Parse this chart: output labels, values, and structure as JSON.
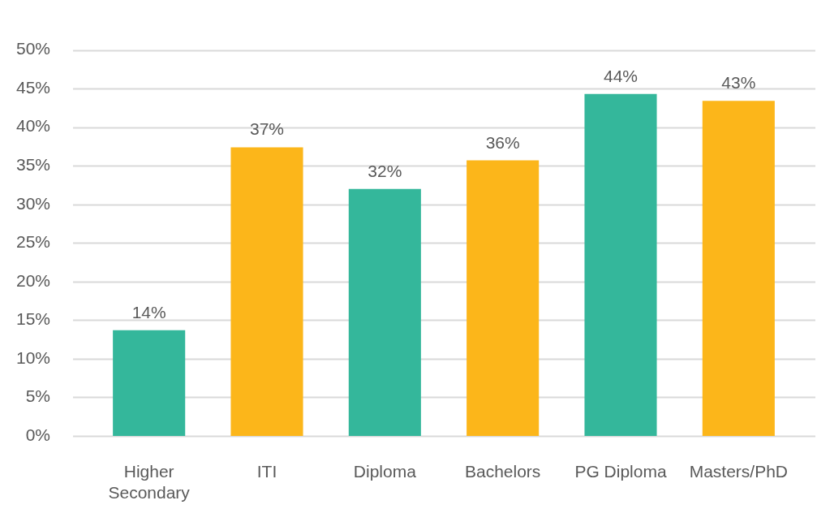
{
  "chart_data": {
    "type": "bar",
    "categories": [
      "Higher Secondary",
      "ITI",
      "Diploma",
      "Bachelors",
      "PG Diploma",
      "Masters/PhD"
    ],
    "values": [
      13.7,
      37.4,
      32.0,
      35.7,
      44.3,
      43.4
    ],
    "colors": [
      "#34b79b",
      "#fcb61a",
      "#34b79b",
      "#fcb61a",
      "#34b79b",
      "#fcb61a"
    ],
    "value_labels": [
      "14%",
      "37%",
      "32%",
      "36%",
      "44%",
      "43%"
    ],
    "ylim": [
      0,
      50
    ],
    "yticks": [
      {
        "value": 0,
        "label": "0%"
      },
      {
        "value": 5,
        "label": "5%"
      },
      {
        "value": 10,
        "label": "10%"
      },
      {
        "value": 15,
        "label": "15%"
      },
      {
        "value": 20,
        "label": "20%"
      },
      {
        "value": 25,
        "label": "25%"
      },
      {
        "value": 30,
        "label": "30%"
      },
      {
        "value": 35,
        "label": "35%"
      },
      {
        "value": 40,
        "label": "40%"
      },
      {
        "value": 45,
        "label": "45%"
      },
      {
        "value": 50,
        "label": "50%"
      }
    ],
    "grid": "y"
  }
}
